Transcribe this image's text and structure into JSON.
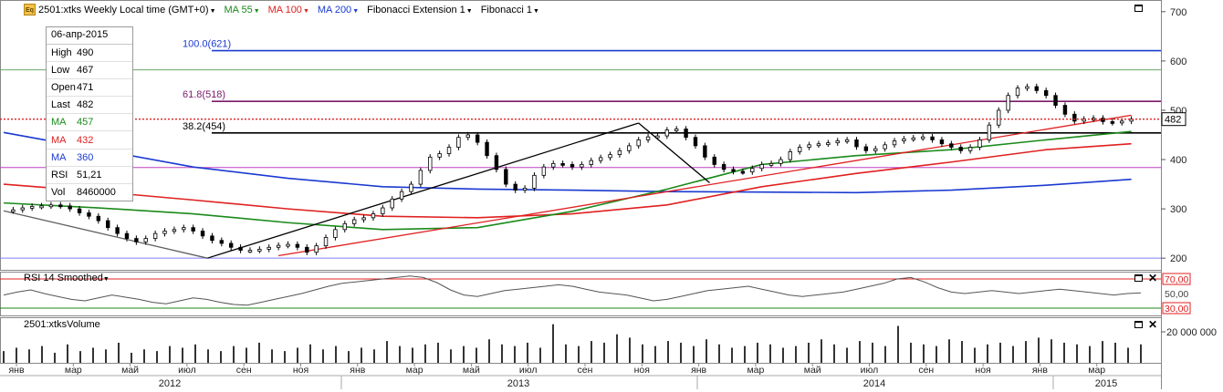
{
  "legend": {
    "symbol_label": "2501:xtks Weekly Local time (GMT+0)",
    "ma55_label": "MA 55",
    "ma100_label": "MA 100",
    "ma200_label": "MA 200",
    "fibext_label": "Fibonacci Extension 1",
    "fib_label": "Fibonacci 1",
    "icon": "Eq",
    "colors": {
      "ma55": "#1a8a1a",
      "ma100": "#e02020",
      "ma200": "#1a3ad0"
    }
  },
  "infobox": {
    "date": "06-апр-2015",
    "rows": [
      {
        "key": "High",
        "value": "490",
        "color": "#000000"
      },
      {
        "key": "Low",
        "value": "467",
        "color": "#000000"
      },
      {
        "key": "Open",
        "value": "471",
        "color": "#000000"
      },
      {
        "key": "Last",
        "value": "482",
        "color": "#000000"
      },
      {
        "key": "MA",
        "value": "457",
        "color": "#1a8a1a"
      },
      {
        "key": "MA",
        "value": "432",
        "color": "#e02020"
      },
      {
        "key": "MA",
        "value": "360",
        "color": "#1a3ad0"
      },
      {
        "key": "RSI",
        "value": "51,21",
        "color": "#000000"
      },
      {
        "key": "Vol",
        "value": "8460000",
        "color": "#000000"
      }
    ]
  },
  "rsi_panel": {
    "title": "RSI 14 Smoothed",
    "levels": [
      "70,00",
      "50,00",
      "30,00"
    ]
  },
  "volume_panel": {
    "title": "2501:xtksVolume",
    "tick": "20 000 000"
  },
  "chart_data": {
    "type": "candlestick",
    "y_ticks": [
      "200",
      "300",
      "400",
      "500",
      "600",
      "700"
    ],
    "ylim": [
      180,
      720
    ],
    "last_price_label": "482",
    "x_month_labels": [
      "янв",
      "мар",
      "май",
      "июл",
      "сен",
      "ноя",
      "янв",
      "мар",
      "май",
      "июл",
      "сен",
      "ноя",
      "янв",
      "мар",
      "май",
      "июл",
      "сен",
      "ноя",
      "янв",
      "мар"
    ],
    "x_year_labels": [
      "2012",
      "2013",
      "2014",
      "2015"
    ],
    "fib_levels": [
      {
        "label": "100.0(621)",
        "value": 621,
        "color": "#1a3ad0"
      },
      {
        "label": "61.8(518)",
        "value": 518,
        "color": "#7a1a6a"
      },
      {
        "label": "38.2(454)",
        "value": 454,
        "color": "#000000"
      }
    ],
    "horizontal_lines": [
      {
        "value": 582,
        "color": "#6aa86a"
      },
      {
        "value": 384,
        "color": "#c040c0"
      },
      {
        "value": 200,
        "color": "#8080ff"
      }
    ],
    "close_series": [
      [
        0,
        296
      ],
      [
        2,
        298
      ],
      [
        4,
        302
      ],
      [
        6,
        305
      ],
      [
        8,
        306
      ],
      [
        10,
        308
      ],
      [
        12,
        306
      ],
      [
        14,
        300
      ],
      [
        16,
        292
      ],
      [
        18,
        285
      ],
      [
        20,
        276
      ],
      [
        22,
        262
      ],
      [
        24,
        250
      ],
      [
        26,
        240
      ],
      [
        28,
        233
      ],
      [
        30,
        240
      ],
      [
        32,
        250
      ],
      [
        34,
        255
      ],
      [
        36,
        258
      ],
      [
        38,
        262
      ],
      [
        40,
        255
      ],
      [
        42,
        245
      ],
      [
        44,
        236
      ],
      [
        46,
        230
      ],
      [
        48,
        222
      ],
      [
        50,
        216
      ],
      [
        52,
        216
      ],
      [
        54,
        218
      ],
      [
        56,
        222
      ],
      [
        58,
        226
      ],
      [
        60,
        228
      ],
      [
        62,
        222
      ],
      [
        64,
        212
      ],
      [
        66,
        225
      ],
      [
        68,
        242
      ],
      [
        70,
        258
      ],
      [
        72,
        270
      ],
      [
        74,
        278
      ],
      [
        76,
        282
      ],
      [
        78,
        290
      ],
      [
        80,
        302
      ],
      [
        82,
        320
      ],
      [
        84,
        335
      ],
      [
        86,
        350
      ],
      [
        88,
        378
      ],
      [
        90,
        405
      ],
      [
        92,
        412
      ],
      [
        94,
        425
      ],
      [
        96,
        445
      ],
      [
        98,
        450
      ],
      [
        100,
        435
      ],
      [
        102,
        408
      ],
      [
        104,
        380
      ],
      [
        106,
        350
      ],
      [
        108,
        338
      ],
      [
        110,
        342
      ],
      [
        112,
        368
      ],
      [
        114,
        385
      ],
      [
        116,
        392
      ],
      [
        118,
        390
      ],
      [
        120,
        385
      ],
      [
        122,
        390
      ],
      [
        124,
        398
      ],
      [
        126,
        404
      ],
      [
        128,
        410
      ],
      [
        130,
        418
      ],
      [
        132,
        428
      ],
      [
        134,
        440
      ],
      [
        136,
        446
      ],
      [
        138,
        448
      ],
      [
        140,
        460
      ],
      [
        142,
        462
      ],
      [
        144,
        445
      ],
      [
        146,
        428
      ],
      [
        148,
        405
      ],
      [
        150,
        390
      ],
      [
        152,
        380
      ],
      [
        154,
        376
      ],
      [
        156,
        375
      ],
      [
        158,
        382
      ],
      [
        160,
        390
      ],
      [
        162,
        392
      ],
      [
        164,
        400
      ],
      [
        166,
        416
      ],
      [
        168,
        425
      ],
      [
        170,
        430
      ],
      [
        172,
        432
      ],
      [
        174,
        434
      ],
      [
        176,
        438
      ],
      [
        178,
        440
      ],
      [
        180,
        426
      ],
      [
        182,
        418
      ],
      [
        184,
        422
      ],
      [
        186,
        430
      ],
      [
        188,
        438
      ],
      [
        190,
        442
      ],
      [
        192,
        444
      ],
      [
        194,
        446
      ],
      [
        196,
        440
      ],
      [
        198,
        432
      ],
      [
        200,
        425
      ],
      [
        202,
        418
      ],
      [
        204,
        425
      ],
      [
        206,
        440
      ],
      [
        208,
        470
      ],
      [
        210,
        500
      ],
      [
        212,
        530
      ],
      [
        214,
        545
      ],
      [
        216,
        548
      ],
      [
        218,
        540
      ],
      [
        220,
        530
      ],
      [
        222,
        510
      ],
      [
        224,
        492
      ],
      [
        226,
        478
      ],
      [
        228,
        482
      ],
      [
        230,
        484
      ],
      [
        232,
        477
      ],
      [
        234,
        475
      ],
      [
        236,
        478
      ],
      [
        238,
        482
      ]
    ],
    "ma55": [
      [
        0,
        312
      ],
      [
        20,
        302
      ],
      [
        40,
        290
      ],
      [
        60,
        272
      ],
      [
        80,
        258
      ],
      [
        100,
        262
      ],
      [
        120,
        295
      ],
      [
        140,
        340
      ],
      [
        160,
        390
      ],
      [
        180,
        408
      ],
      [
        200,
        420
      ],
      [
        220,
        440
      ],
      [
        238,
        457
      ]
    ],
    "ma100": [
      [
        0,
        350
      ],
      [
        20,
        335
      ],
      [
        40,
        318
      ],
      [
        60,
        300
      ],
      [
        80,
        285
      ],
      [
        100,
        282
      ],
      [
        120,
        290
      ],
      [
        140,
        308
      ],
      [
        160,
        345
      ],
      [
        180,
        372
      ],
      [
        200,
        395
      ],
      [
        220,
        420
      ],
      [
        238,
        432
      ]
    ],
    "ma200": [
      [
        0,
        455
      ],
      [
        20,
        420
      ],
      [
        40,
        385
      ],
      [
        60,
        362
      ],
      [
        80,
        345
      ],
      [
        100,
        340
      ],
      [
        120,
        338
      ],
      [
        140,
        335
      ],
      [
        160,
        334
      ],
      [
        180,
        333
      ],
      [
        200,
        338
      ],
      [
        220,
        348
      ],
      [
        238,
        360
      ]
    ],
    "trendlines": [
      {
        "points": [
          [
            0,
            296
          ],
          [
            43,
            200
          ]
        ],
        "color": "#606060"
      },
      {
        "points": [
          [
            43,
            200
          ],
          [
            134,
            474
          ]
        ],
        "color": "#000000"
      },
      {
        "points": [
          [
            134,
            474
          ],
          [
            149,
            353
          ]
        ],
        "color": "#000000"
      },
      {
        "points": [
          [
            58,
            205
          ],
          [
            238,
            490
          ]
        ],
        "color": "#e02020"
      }
    ],
    "rsi": [
      48,
      52,
      55,
      50,
      46,
      42,
      40,
      44,
      48,
      45,
      42,
      38,
      36,
      40,
      44,
      42,
      38,
      35,
      34,
      38,
      42,
      46,
      50,
      55,
      60,
      64,
      66,
      68,
      70,
      72,
      74,
      72,
      65,
      55,
      48,
      46,
      50,
      54,
      56,
      58,
      60,
      62,
      60,
      56,
      52,
      50,
      48,
      44,
      40,
      42,
      46,
      50,
      54,
      56,
      58,
      60,
      56,
      52,
      48,
      46,
      48,
      50,
      52,
      56,
      60,
      64,
      70,
      72,
      66,
      58,
      52,
      50,
      52,
      54,
      52,
      50,
      52,
      54,
      56,
      54,
      52,
      50,
      48,
      50,
      51
    ],
    "volume": [
      7,
      9,
      8,
      10,
      6,
      11,
      7,
      9,
      8,
      12,
      6,
      8,
      7,
      10,
      9,
      11,
      8,
      7,
      10,
      9,
      12,
      8,
      7,
      9,
      11,
      8,
      10,
      7,
      9,
      8,
      13,
      10,
      9,
      11,
      12,
      8,
      10,
      9,
      14,
      11,
      10,
      12,
      9,
      23,
      11,
      10,
      13,
      12,
      17,
      15,
      11,
      10,
      13,
      12,
      10,
      14,
      11,
      9,
      10,
      12,
      11,
      9,
      10,
      12,
      14,
      11,
      9,
      13,
      12,
      10,
      22,
      12,
      11,
      10,
      14,
      13,
      9,
      11,
      12,
      10,
      13,
      15,
      14,
      12,
      11,
      10,
      13,
      12,
      9,
      11
    ]
  }
}
